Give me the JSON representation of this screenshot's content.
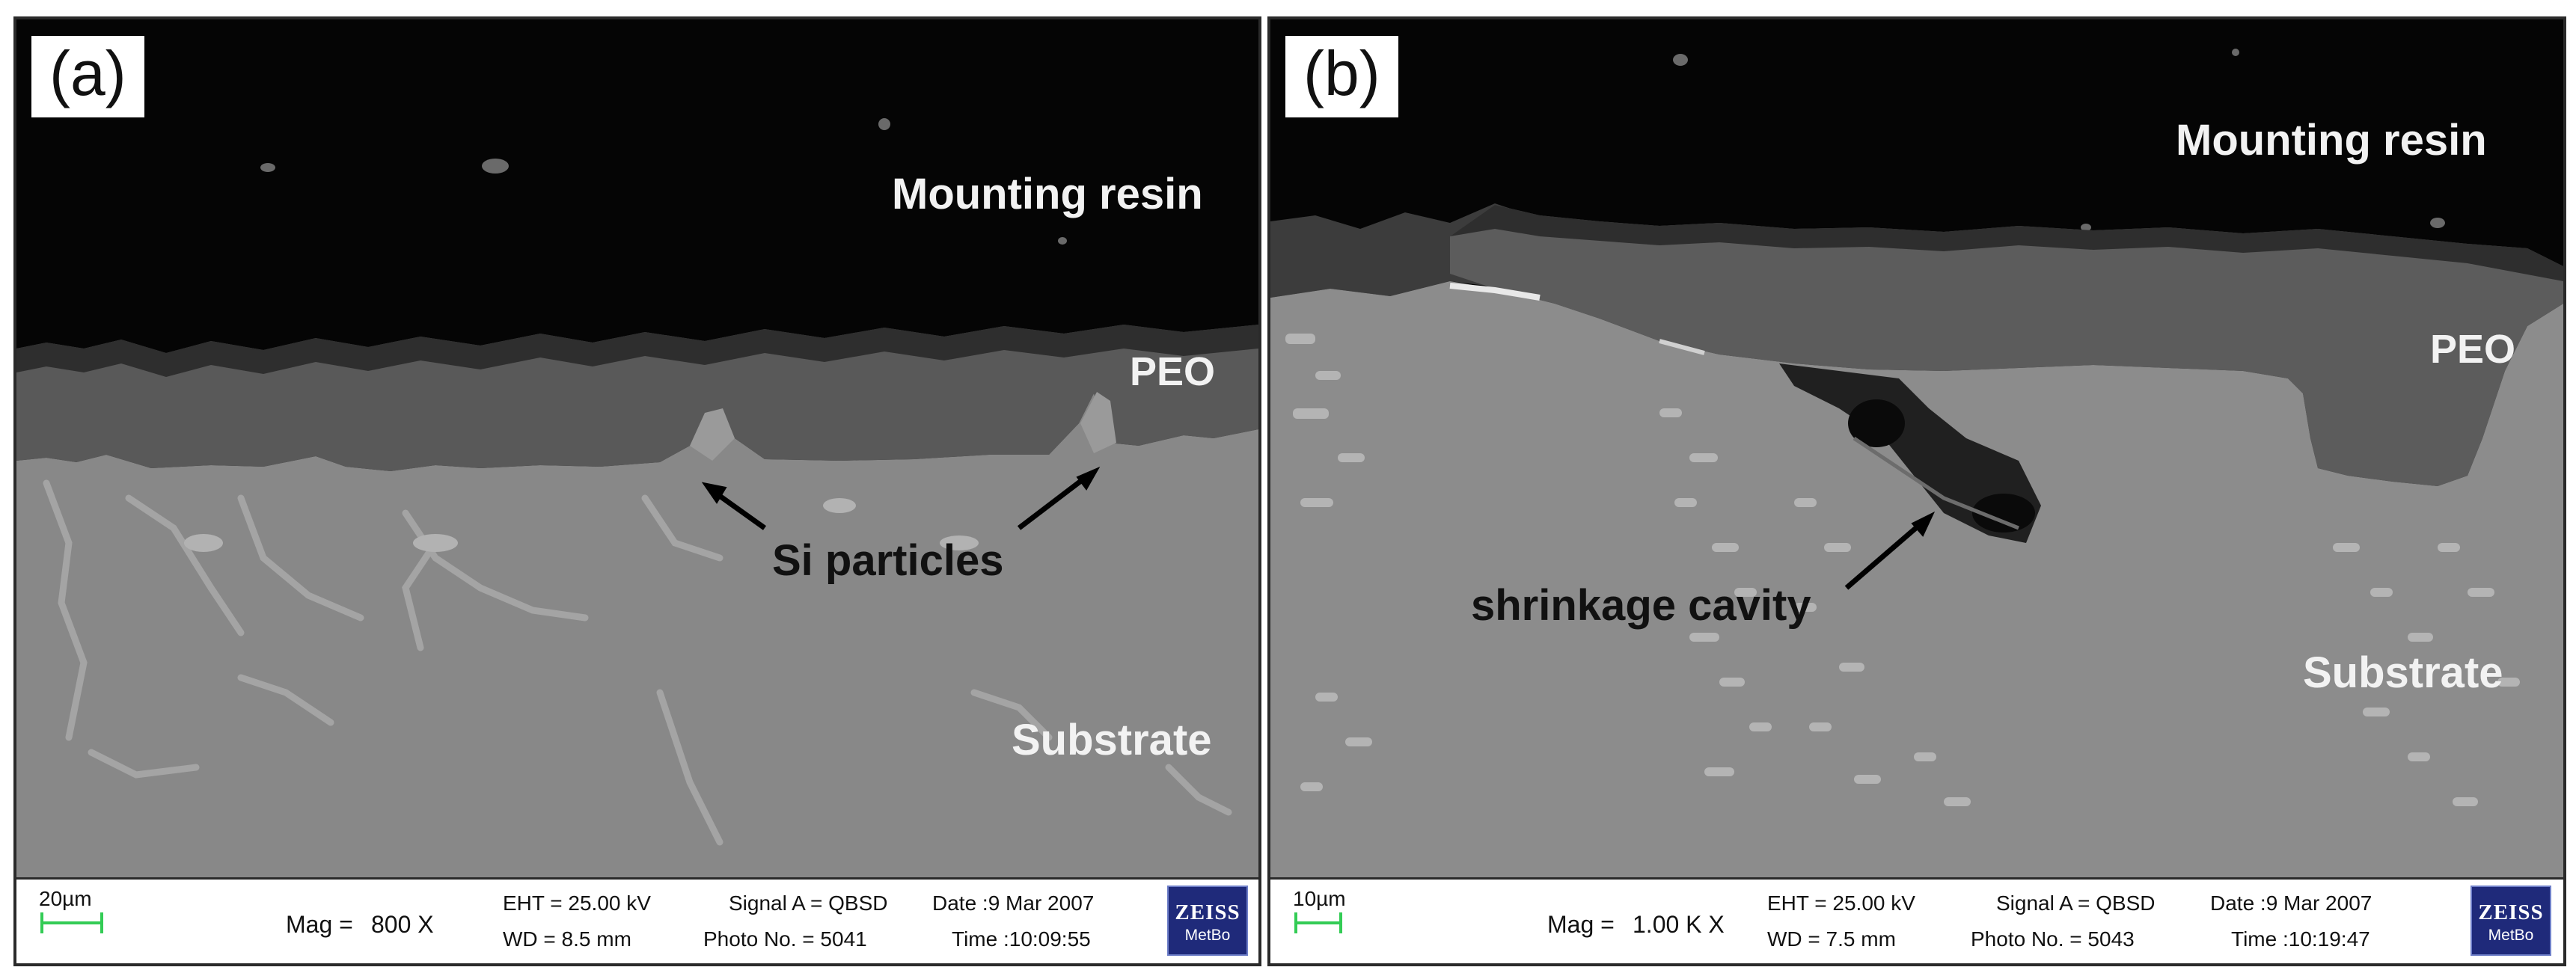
{
  "panels": {
    "a": {
      "tag": "(a)",
      "labels": {
        "resin": "Mounting resin",
        "peo": "PEO",
        "si": "Si particles",
        "substrate": "Substrate"
      },
      "info": {
        "scale": "20µm",
        "mag_label": "Mag =",
        "mag_value": "800 X",
        "eht": "EHT = 25.00 kV",
        "wd": "WD =  8.5 mm",
        "signal": "Signal A = QBSD",
        "photo": "Photo No. = 5041",
        "date": "Date :9 Mar 2007",
        "time": "Time :10:09:55",
        "logo_top": "ZEISS",
        "logo_bottom": "MetBo"
      }
    },
    "b": {
      "tag": "(b)",
      "labels": {
        "resin": "Mounting resin",
        "peo": "PEO",
        "cavity": "shrinkage cavity",
        "substrate": "Substrate"
      },
      "info": {
        "scale": "10µm",
        "mag_label": "Mag =",
        "mag_value": "1.00 K X",
        "eht": "EHT = 25.00 kV",
        "wd": "WD =  7.5 mm",
        "signal": "Signal A = QBSD",
        "photo": "Photo No. = 5043",
        "date": "Date :9 Mar 2007",
        "time": "Time :10:19:47",
        "logo_top": "ZEISS",
        "logo_bottom": "MetBo"
      }
    }
  },
  "colors": {
    "resin": "#050505",
    "peo": "#5c5c5c",
    "substrate": "#8a8a8a",
    "si_phase": "#a9a9a9",
    "scale_bar": "#33cc55",
    "logo": "#1f2a7a"
  }
}
